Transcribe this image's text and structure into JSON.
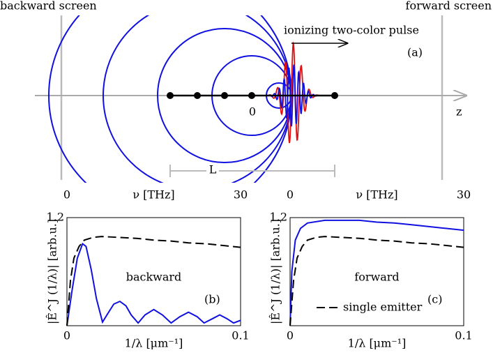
{
  "diagram": {
    "left_screen": "backward screen",
    "right_screen": "forward screen",
    "pulse_label": "ionizing two-color pulse",
    "panel": "(a)",
    "origin": "0",
    "axis": "z",
    "length": "L"
  },
  "chart_data": [
    {
      "type": "line",
      "panel": "(b)",
      "annotation": "backward",
      "xlabel": "1/λ [μm⁻¹]",
      "ylabel": "|Ê^J (1/λ)| [arb.u.]",
      "x2label": "ν [THz]",
      "xlim": [
        0,
        0.1
      ],
      "xticks": [
        0,
        0.1
      ],
      "x2lim": [
        0,
        30
      ],
      "x2ticks": [
        0,
        30
      ],
      "ylim": [
        0,
        1.2
      ],
      "yticks": [
        1.2
      ],
      "series": [
        {
          "color": "#1010e0",
          "dashed": false,
          "x": [
            0,
            0.003,
            0.006,
            0.009,
            0.011,
            0.014,
            0.017,
            0.0205,
            0.024,
            0.027,
            0.0305,
            0.034,
            0.037,
            0.041,
            0.045,
            0.05,
            0.055,
            0.06,
            0.065,
            0.07,
            0.075,
            0.079,
            0.084,
            0.088,
            0.092,
            0.096,
            0.1
          ],
          "values": [
            0,
            0.4,
            0.75,
            0.91,
            0.88,
            0.62,
            0.3,
            0.04,
            0.15,
            0.24,
            0.27,
            0.22,
            0.12,
            0.03,
            0.12,
            0.18,
            0.12,
            0.03,
            0.1,
            0.15,
            0.1,
            0.03,
            0.08,
            0.12,
            0.08,
            0.03,
            0.06
          ]
        },
        {
          "color": "#000000",
          "dashed": true,
          "x": [
            0,
            0.002,
            0.004,
            0.007,
            0.01,
            0.015,
            0.02,
            0.03,
            0.04,
            0.05,
            0.06,
            0.07,
            0.08,
            0.09,
            0.1
          ],
          "values": [
            0,
            0.5,
            0.75,
            0.88,
            0.95,
            0.98,
            0.99,
            0.98,
            0.97,
            0.95,
            0.94,
            0.92,
            0.91,
            0.89,
            0.87
          ]
        }
      ]
    },
    {
      "type": "line",
      "panel": "(c)",
      "annotation": "forward",
      "xlabel": "1/λ [μm⁻¹]",
      "ylabel": "|Ê^J (1/λ)| [arb.u.]",
      "x2label": "ν [THz]",
      "xlim": [
        0,
        0.1
      ],
      "xticks": [
        0,
        0.1
      ],
      "x2lim": [
        0,
        30
      ],
      "x2ticks": [
        0,
        30
      ],
      "ylim": [
        0,
        1.2
      ],
      "yticks": [
        1.2
      ],
      "series": [
        {
          "color": "#1010e0",
          "dashed": false,
          "x": [
            0,
            0.001,
            0.003,
            0.006,
            0.01,
            0.02,
            0.03,
            0.04,
            0.05,
            0.06,
            0.07,
            0.08,
            0.09,
            0.1
          ],
          "values": [
            0,
            0.6,
            0.95,
            1.08,
            1.14,
            1.17,
            1.17,
            1.17,
            1.15,
            1.14,
            1.12,
            1.1,
            1.08,
            1.06
          ]
        },
        {
          "name": "single emitter",
          "color": "#000000",
          "dashed": true,
          "x": [
            0,
            0.002,
            0.004,
            0.007,
            0.01,
            0.015,
            0.02,
            0.03,
            0.04,
            0.05,
            0.06,
            0.07,
            0.08,
            0.09,
            0.1
          ],
          "values": [
            0,
            0.5,
            0.75,
            0.88,
            0.95,
            0.98,
            0.99,
            0.98,
            0.97,
            0.95,
            0.94,
            0.92,
            0.91,
            0.89,
            0.87
          ]
        }
      ]
    }
  ]
}
